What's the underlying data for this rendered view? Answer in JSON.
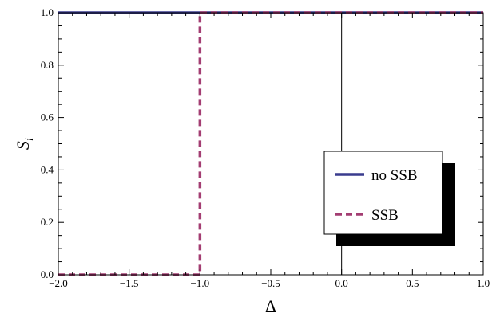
{
  "chart_data": {
    "type": "line",
    "xlabel": "Δ",
    "ylabel": "S",
    "ylabel_subscript": "i",
    "xlim": [
      -2.0,
      1.0
    ],
    "ylim": [
      0.0,
      1.0
    ],
    "x_ticks": [
      "−2.0",
      "−1.5",
      "−1.0",
      "−0.5",
      "0.0",
      "0.5",
      "1.0"
    ],
    "x_tick_values": [
      -2.0,
      -1.5,
      -1.0,
      -0.5,
      0.0,
      0.5,
      1.0
    ],
    "y_ticks": [
      "0.0",
      "0.2",
      "0.4",
      "0.6",
      "0.8",
      "1.0"
    ],
    "y_tick_values": [
      0.0,
      0.2,
      0.4,
      0.6,
      0.8,
      1.0
    ],
    "grid": false,
    "legend_position": "right",
    "series": [
      {
        "name": "no SSB",
        "color": "#3a3c8e",
        "style": "solid",
        "points": [
          [
            -2.0,
            1.0
          ],
          [
            1.0,
            1.0
          ]
        ]
      },
      {
        "name": "SSB",
        "color": "#a33d72",
        "style": "dashed",
        "points": [
          [
            -2.0,
            0.0
          ],
          [
            -1.0,
            0.0
          ],
          [
            -1.0,
            1.0
          ],
          [
            1.0,
            1.0
          ]
        ]
      }
    ]
  }
}
